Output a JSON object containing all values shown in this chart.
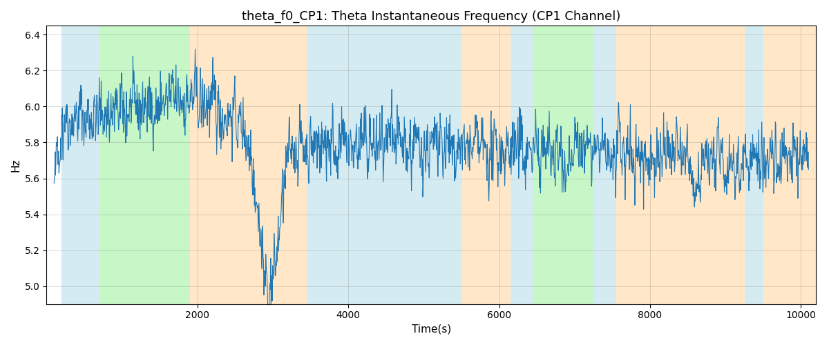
{
  "title": "theta_f0_CP1: Theta Instantaneous Frequency (CP1 Channel)",
  "xlabel": "Time(s)",
  "ylabel": "Hz",
  "xlim": [
    0,
    10200
  ],
  "ylim": [
    4.9,
    6.45
  ],
  "line_color": "#1f77b4",
  "line_width": 0.8,
  "background_color": "#ffffff",
  "figsize": [
    12,
    5
  ],
  "dpi": 100,
  "bands": [
    {
      "xmin": 200,
      "xmax": 700,
      "color": "#add8e6",
      "alpha": 0.5
    },
    {
      "xmin": 700,
      "xmax": 1900,
      "color": "#90ee90",
      "alpha": 0.5
    },
    {
      "xmin": 1900,
      "xmax": 3450,
      "color": "#ffd59b",
      "alpha": 0.55
    },
    {
      "xmin": 3450,
      "xmax": 5500,
      "color": "#add8e6",
      "alpha": 0.5
    },
    {
      "xmin": 5500,
      "xmax": 6150,
      "color": "#ffd59b",
      "alpha": 0.55
    },
    {
      "xmin": 6150,
      "xmax": 6450,
      "color": "#add8e6",
      "alpha": 0.5
    },
    {
      "xmin": 6450,
      "xmax": 7250,
      "color": "#90ee90",
      "alpha": 0.5
    },
    {
      "xmin": 7250,
      "xmax": 7550,
      "color": "#add8e6",
      "alpha": 0.5
    },
    {
      "xmin": 7550,
      "xmax": 9250,
      "color": "#ffd59b",
      "alpha": 0.55
    },
    {
      "xmin": 9250,
      "xmax": 9500,
      "color": "#add8e6",
      "alpha": 0.5
    },
    {
      "xmin": 9500,
      "xmax": 10200,
      "color": "#ffd59b",
      "alpha": 0.55
    }
  ],
  "seed": 42,
  "n_points": 2000,
  "time_start": 100,
  "time_end": 10100
}
